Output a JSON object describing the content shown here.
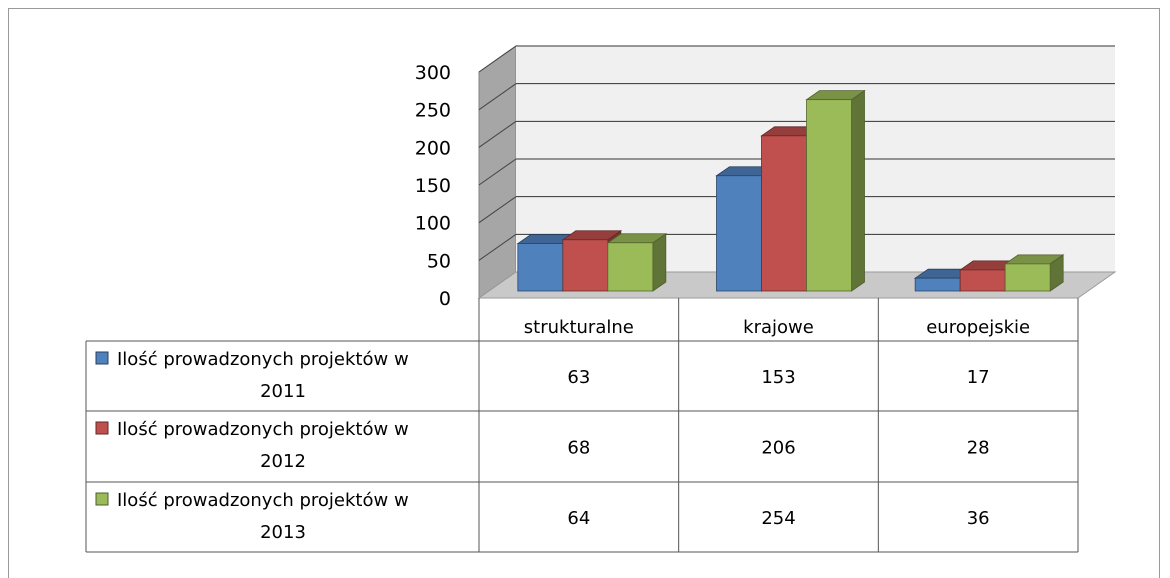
{
  "chart_data": {
    "type": "bar",
    "variant": "3d-clustered-column-with-data-table",
    "title": "",
    "xlabel": "",
    "ylabel": "",
    "ylim": [
      0,
      300
    ],
    "yticks": [
      0,
      50,
      100,
      150,
      200,
      250,
      300
    ],
    "grid": true,
    "legend": "data-table",
    "categories": [
      "strukturalne",
      "krajowe",
      "europejskie"
    ],
    "series": [
      {
        "name": "Ilość prowadzonych projektów w 2011",
        "values": [
          63,
          153,
          17
        ],
        "color": "#4f81bd"
      },
      {
        "name": "Ilość prowadzonych projektów w 2012",
        "values": [
          68,
          206,
          28
        ],
        "color": "#c0504d"
      },
      {
        "name": "Ilość prowadzonych projektów w 2013",
        "values": [
          64,
          254,
          36
        ],
        "color": "#9bbb59"
      }
    ]
  }
}
